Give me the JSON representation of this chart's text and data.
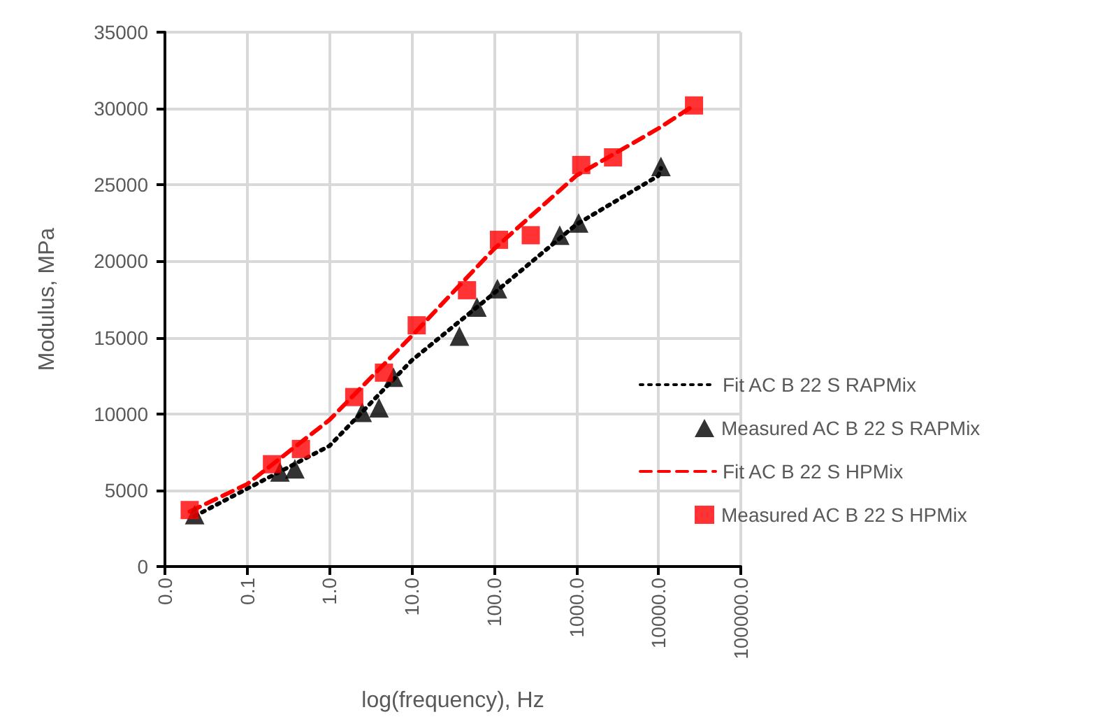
{
  "chart_data": {
    "type": "line",
    "xlabel": "log(frequency), Hz",
    "ylabel": "Modulus, MPa",
    "log": "x",
    "grid": true,
    "legend": "right",
    "xlim": [
      0.01,
      100000
    ],
    "xticks": [
      {
        "value": 0.01,
        "label": "0.0"
      },
      {
        "value": 0.1,
        "label": "0.1"
      },
      {
        "value": 1,
        "label": "1.0"
      },
      {
        "value": 10,
        "label": "10.0"
      },
      {
        "value": 100,
        "label": "100.0"
      },
      {
        "value": 1000,
        "label": "1000.0"
      },
      {
        "value": 10000,
        "label": "10000.0"
      },
      {
        "value": 100000,
        "label": "100000.0"
      }
    ],
    "ylim": [
      0,
      35000
    ],
    "yticks": [
      0,
      5000,
      10000,
      15000,
      20000,
      25000,
      30000,
      35000
    ],
    "series": [
      {
        "name": "Fit AC B 22 S RAPMix",
        "type": "line",
        "color": "#000000",
        "line_style": "dotted",
        "marker": "none",
        "x": [
          0.023,
          0.1,
          1,
          10,
          100,
          1000,
          10000,
          10700
        ],
        "values": [
          3300,
          5100,
          7900,
          13500,
          17900,
          22400,
          25600,
          26100
        ]
      },
      {
        "name": "Measured AC B 22 S RAPMix",
        "type": "scatter",
        "color": "#000000",
        "marker": "triangle",
        "x": [
          0.023,
          0.25,
          0.38,
          2.5,
          4.0,
          6.0,
          38,
          62,
          110,
          630,
          1070,
          10700
        ],
        "values": [
          3400,
          6200,
          6400,
          10100,
          10400,
          12400,
          15100,
          17000,
          18200,
          21700,
          22500,
          26200
        ]
      },
      {
        "name": "Fit AC B 22 S HPMix",
        "type": "line",
        "color": "#ff0000",
        "line_style": "dashed",
        "marker": "none",
        "x": [
          0.02,
          0.1,
          1,
          10,
          100,
          1000,
          10000,
          27000
        ],
        "values": [
          3600,
          5400,
          9600,
          15100,
          20800,
          25600,
          28700,
          30200
        ]
      },
      {
        "name": "Measured AC B 22 S HPMix",
        "type": "scatter",
        "color": "#ff0000",
        "marker": "square",
        "x": [
          0.02,
          0.2,
          0.45,
          2.0,
          4.6,
          11.5,
          47,
          115,
          280,
          1150,
          2800,
          27000
        ],
        "values": [
          3700,
          6700,
          7700,
          11100,
          12700,
          15800,
          18100,
          21400,
          21700,
          26300,
          26800,
          30200
        ]
      }
    ]
  }
}
